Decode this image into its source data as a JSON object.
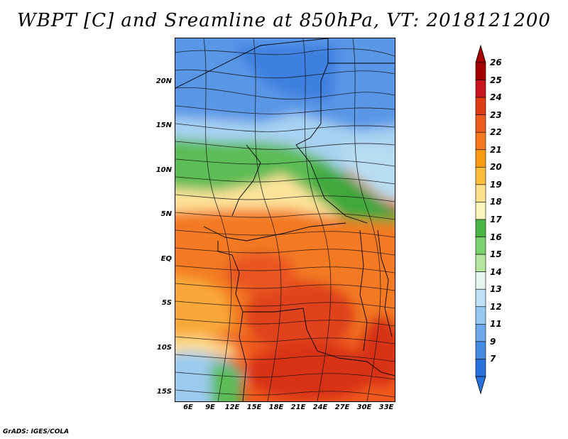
{
  "title": "WBPT [C] and Sreamline at 850hPa, VT: 2018121200",
  "credit": "GrADS: IGES/COLA",
  "map": {
    "lat_labels": [
      "20N",
      "15N",
      "10N",
      "5N",
      "EQ",
      "5S",
      "10S",
      "15S"
    ],
    "lon_labels": [
      "6E",
      "9E",
      "12E",
      "15E",
      "18E",
      "21E",
      "24E",
      "27E",
      "30E",
      "33E"
    ],
    "field": "WBPT",
    "units": "C",
    "level": "850hPa",
    "valid_time": "2018121200"
  },
  "colorbar": {
    "levels": [
      "26",
      "25",
      "24",
      "23",
      "22",
      "21",
      "20",
      "19",
      "18",
      "17",
      "16",
      "15",
      "14",
      "13",
      "12",
      "11",
      "9",
      "7"
    ],
    "colors": [
      "#a50000",
      "#c8141e",
      "#e03c14",
      "#ef5a1e",
      "#f5781e",
      "#f99b14",
      "#fdbe3c",
      "#fde18c",
      "#fdf5be",
      "#4bb446",
      "#7ad26e",
      "#b4e6a0",
      "#e6f5f0",
      "#bee1f5",
      "#96c8f0",
      "#6eaaeb",
      "#468ce1",
      "#2870dc"
    ]
  }
}
